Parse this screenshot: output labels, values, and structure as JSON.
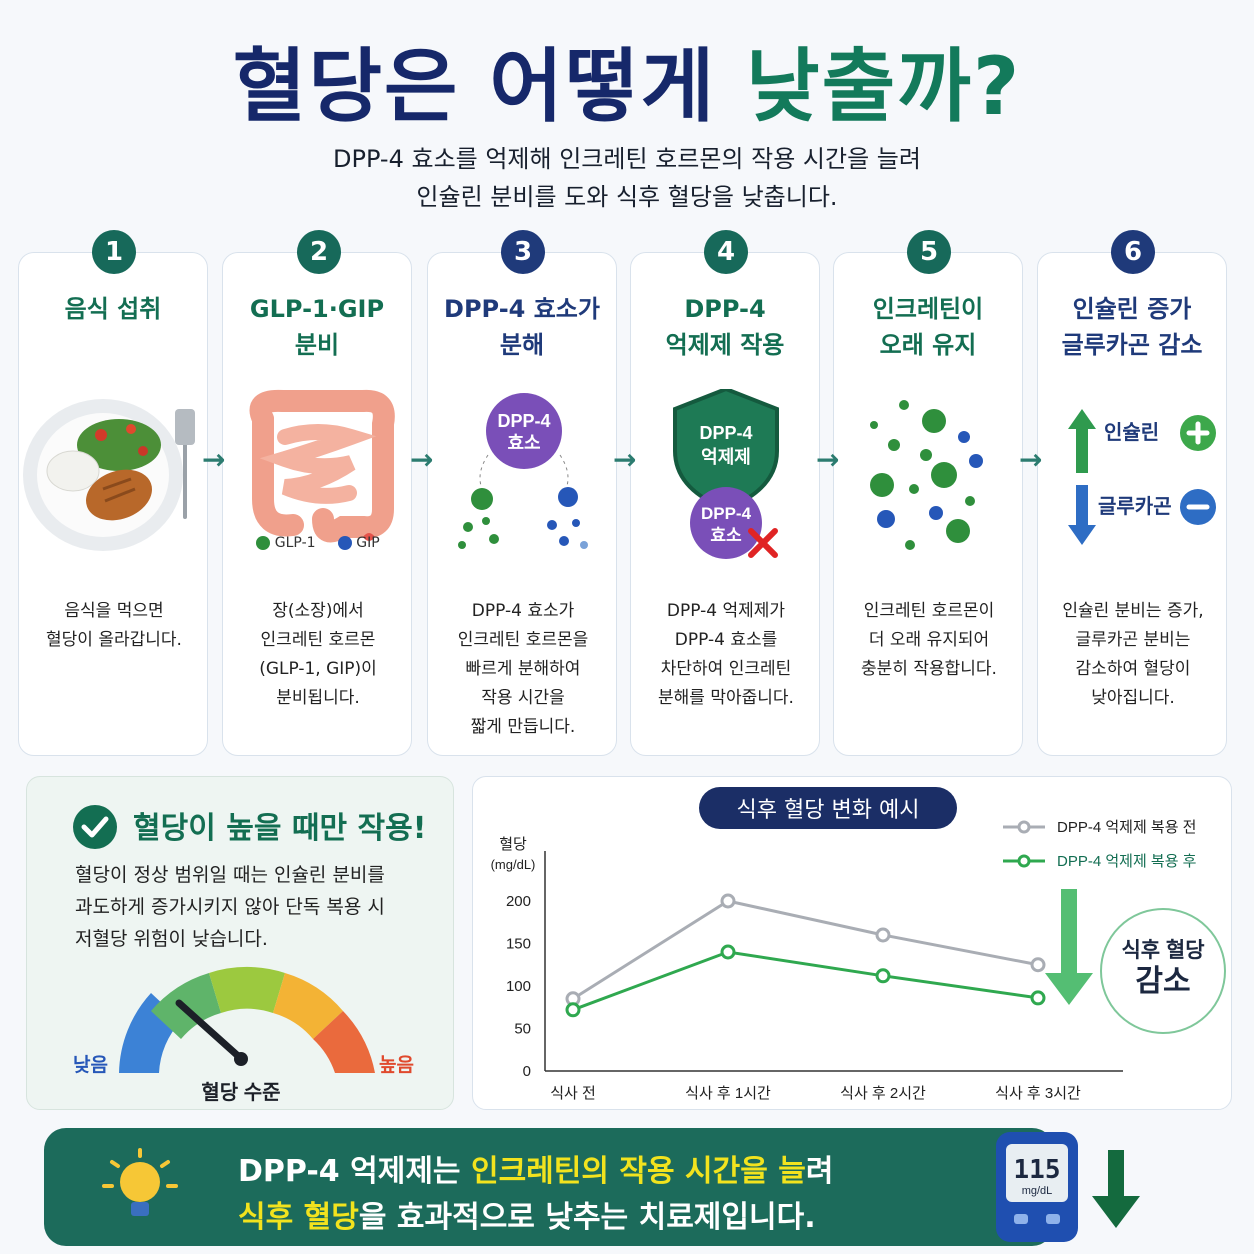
{
  "title": {
    "part1": "혈당은 어떻게",
    "part2": "낮출까?"
  },
  "subtitle": {
    "line1": "DPP-4 효소를 억제해 인크레틴 호르몬의 작용 시간을 늘려",
    "line2": "인슐린 분비를 도와 식후 혈당을 낮춥니다."
  },
  "steps": [
    {
      "num": "1",
      "title1": "음식 섭취",
      "title2": "",
      "desc": [
        "음식을 먹으면",
        "혈당이 올라갑니다."
      ]
    },
    {
      "num": "2",
      "title1": "GLP-1·GIP",
      "title2": "분비",
      "desc": [
        "장(소장)에서",
        "인크레틴 호르몬",
        "(GLP-1, GIP)이",
        "분비됩니다."
      ]
    },
    {
      "num": "3",
      "title1": "DPP-4 효소가",
      "title2": "분해",
      "desc": [
        "DPP-4 효소가",
        "인크레틴 호르몬을",
        "빠르게 분해하여",
        "작용 시간을",
        "짧게 만듭니다."
      ]
    },
    {
      "num": "4",
      "title1": "DPP-4",
      "title2": "억제제 작용",
      "desc": [
        "DPP-4 억제제가",
        "DPP-4 효소를",
        "차단하여 인크레틴",
        "분해를 막아줍니다."
      ]
    },
    {
      "num": "5",
      "title1": "인크레틴이",
      "title2": "오래 유지",
      "desc": [
        "인크레틴 호르몬이",
        "더 오래 유지되어",
        "충분히 작용합니다."
      ]
    },
    {
      "num": "6",
      "title1": "인슐린 증가",
      "title2": "글루카곤 감소",
      "desc": [
        "인슐린 분비는 증가,",
        "글루카곤 분비는",
        "감소하여 혈당이",
        "낮아집니다."
      ]
    }
  ],
  "step2_legend": {
    "glp1": "GLP-1",
    "gip": "GIP"
  },
  "step3_label": {
    "l1": "DPP-4",
    "l2": "효소"
  },
  "step4_label": {
    "shield1": "DPP-4",
    "shield2": "억제제",
    "enzyme1": "DPP-4",
    "enzyme2": "효소"
  },
  "step6_labels": {
    "insulin": "인슐린",
    "glucagon": "글루카곤"
  },
  "panel_left": {
    "heading": "혈당이 높을 때만 작용!",
    "body": [
      "혈당이 정상 범위일 때는 인슐린 분비를",
      "과도하게 증가시키지 않아 단독 복용 시",
      "저혈당 위험이 낮습니다."
    ],
    "gauge_low": "낮음",
    "gauge_high": "높음",
    "gauge_label": "혈당 수준"
  },
  "chart_data": {
    "type": "line",
    "title": "식후 혈당 변화 예시",
    "ylabel": "혈당",
    "yunit": "(mg/dL)",
    "categories": [
      "식사 전",
      "식사 후 1시간",
      "식사 후 2시간",
      "식사 후 3시간"
    ],
    "ylim": [
      0,
      200
    ],
    "yticks": [
      "0",
      "50",
      "100",
      "150",
      "200"
    ],
    "series": [
      {
        "name": "DPP-4 억제제 복용 전",
        "values": [
          85,
          200,
          160,
          125
        ],
        "color": "#a9adb4"
      },
      {
        "name": "DPP-4 억제제 복용 후",
        "values": [
          72,
          140,
          112,
          86
        ],
        "color": "#2fa84f"
      }
    ],
    "legend_position": "top-right",
    "annotation": {
      "l1": "식후 혈당",
      "l2": "감소"
    }
  },
  "banner": {
    "line1_a": "DPP-4 억제제는 ",
    "line1_b": "인크레틴의 작용 시간을 늘",
    "line1_c": "려",
    "line2_a": "식후 혈당",
    "line2_b": "을 효과적으로 낮추는 치료제입니다.",
    "meter_value": "115",
    "meter_unit": "mg/dL"
  },
  "colors": {
    "navy": "#16286a",
    "green": "#137a5b",
    "banner": "#1c6b5b",
    "highlight": "#f2e31e"
  }
}
